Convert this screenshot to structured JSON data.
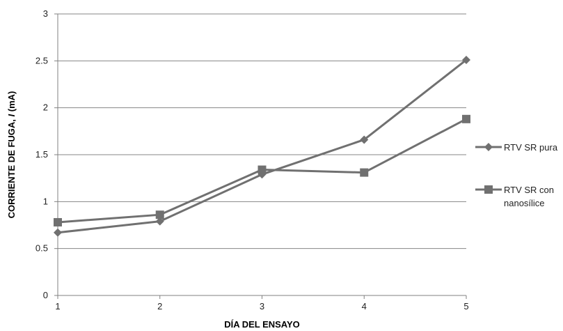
{
  "chart_data": {
    "type": "line",
    "xlabel": "DÍA DEL ENSAYO",
    "ylabel": "CORRIENTE DE FUGA, I (mA)",
    "ylabel_parts": {
      "prefix": "CORRIENTE DE FUGA, ",
      "italic": "I",
      "suffix": " (mA)"
    },
    "x": [
      1,
      2,
      3,
      4,
      5
    ],
    "x_ticks": [
      "1",
      "2",
      "3",
      "4",
      "5"
    ],
    "ylim": [
      0,
      3
    ],
    "y_ticks": [
      "0",
      "0.5",
      "1",
      "1.5",
      "2",
      "2.5",
      "3"
    ],
    "grid": true,
    "legend_position": "right",
    "line_color": "#707070",
    "series": [
      {
        "name": "RTV SR pura",
        "name_lines": [
          "RTV SR pura"
        ],
        "marker": "diamond",
        "values": [
          0.67,
          0.79,
          1.29,
          1.66,
          2.51
        ]
      },
      {
        "name": "RTV SR con nanosílice",
        "name_lines": [
          "RTV SR con",
          "nanosílice"
        ],
        "marker": "square",
        "values": [
          0.78,
          0.86,
          1.34,
          1.31,
          1.88
        ]
      }
    ]
  }
}
